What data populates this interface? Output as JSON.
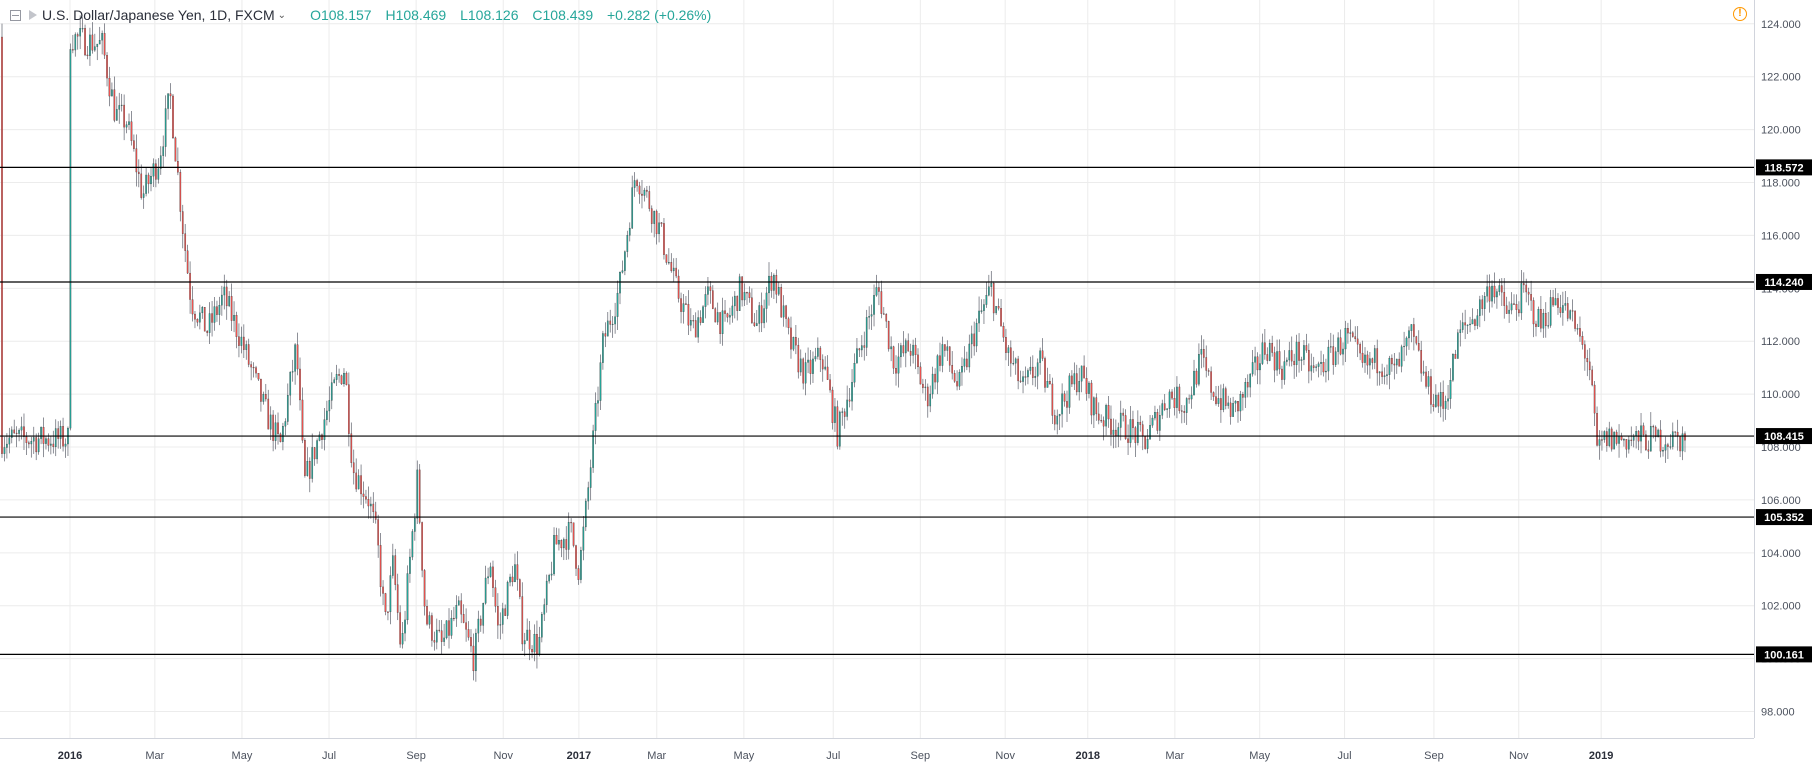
{
  "header": {
    "symbol": "U.S. Dollar/Japanese Yen, 1D, FXCM",
    "open_label": "O",
    "open": "108.157",
    "high_label": "H",
    "high": "108.469",
    "low_label": "L",
    "low": "108.126",
    "close_label": "C",
    "close": "108.439",
    "change": "+0.282 (+0.26%)"
  },
  "chart_data": {
    "type": "candlestick",
    "title": "U.S. Dollar/Japanese Yen, 1D, FXCM",
    "yaxis": {
      "min": 97,
      "max": 124.9,
      "ticks": [
        "98.000",
        "100.000",
        "102.000",
        "104.000",
        "106.000",
        "108.000",
        "110.000",
        "112.000",
        "114.000",
        "116.000",
        "118.000",
        "120.000",
        "122.000",
        "124.000"
      ]
    },
    "xaxis": {
      "labels": [
        {
          "text": "2016",
          "bold": true,
          "pos": 0.0
        },
        {
          "text": "Mar",
          "bold": false,
          "pos": 0.0525
        },
        {
          "text": "May",
          "bold": false,
          "pos": 0.1064
        },
        {
          "text": "Jul",
          "bold": false,
          "pos": 0.1603
        },
        {
          "text": "Sep",
          "bold": false,
          "pos": 0.2142
        },
        {
          "text": "Nov",
          "bold": false,
          "pos": 0.2681
        },
        {
          "text": "2017",
          "bold": true,
          "pos": 0.3149
        },
        {
          "text": "Mar",
          "bold": false,
          "pos": 0.3631
        },
        {
          "text": "May",
          "bold": false,
          "pos": 0.417
        },
        {
          "text": "Jul",
          "bold": false,
          "pos": 0.4723
        },
        {
          "text": "Sep",
          "bold": false,
          "pos": 0.5262
        },
        {
          "text": "Nov",
          "bold": false,
          "pos": 0.5787
        },
        {
          "text": "2018",
          "bold": true,
          "pos": 0.6298
        },
        {
          "text": "Mar",
          "bold": false,
          "pos": 0.6837
        },
        {
          "text": "May",
          "bold": false,
          "pos": 0.7362
        },
        {
          "text": "Jul",
          "bold": false,
          "pos": 0.7887
        },
        {
          "text": "Sep",
          "bold": false,
          "pos": 0.844
        },
        {
          "text": "Nov",
          "bold": false,
          "pos": 0.8965
        },
        {
          "text": "2019",
          "bold": true,
          "pos": 0.9475
        }
      ]
    },
    "levels": [
      118.572,
      114.24,
      108.415,
      105.352,
      100.161
    ],
    "level_labels": [
      "118.572",
      "114.240",
      "108.415",
      "105.352",
      "100.161"
    ],
    "key_points": [
      [
        0,
        123.5
      ],
      [
        0.02,
        123.2
      ],
      [
        0.028,
        120.6
      ],
      [
        0.035,
        120.3
      ],
      [
        0.045,
        117.5
      ],
      [
        0.055,
        118.9
      ],
      [
        0.062,
        121.3
      ],
      [
        0.07,
        116.2
      ],
      [
        0.075,
        113.5
      ],
      [
        0.085,
        112.4
      ],
      [
        0.095,
        113.7
      ],
      [
        0.105,
        112.2
      ],
      [
        0.12,
        109.5
      ],
      [
        0.13,
        108.0
      ],
      [
        0.14,
        111.8
      ],
      [
        0.145,
        106.6
      ],
      [
        0.155,
        108.6
      ],
      [
        0.165,
        110.5
      ],
      [
        0.17,
        111.0
      ],
      [
        0.175,
        107.2
      ],
      [
        0.185,
        106.0
      ],
      [
        0.19,
        104.5
      ],
      [
        0.195,
        101.3
      ],
      [
        0.2,
        103.6
      ],
      [
        0.205,
        100.2
      ],
      [
        0.215,
        106.8
      ],
      [
        0.22,
        101.5
      ],
      [
        0.23,
        100.5
      ],
      [
        0.24,
        101.8
      ],
      [
        0.25,
        100.0
      ],
      [
        0.26,
        103.8
      ],
      [
        0.265,
        101.0
      ],
      [
        0.275,
        103.6
      ],
      [
        0.28,
        101.0
      ],
      [
        0.29,
        100.5
      ],
      [
        0.3,
        104.3
      ],
      [
        0.31,
        104.8
      ],
      [
        0.315,
        103.3
      ],
      [
        0.32,
        106.0
      ],
      [
        0.33,
        112.0
      ],
      [
        0.34,
        114.0
      ],
      [
        0.35,
        118.4
      ],
      [
        0.358,
        117.3
      ],
      [
        0.365,
        116.2
      ],
      [
        0.375,
        114.0
      ],
      [
        0.385,
        112.4
      ],
      [
        0.395,
        113.7
      ],
      [
        0.405,
        112.5
      ],
      [
        0.415,
        114.0
      ],
      [
        0.425,
        112.6
      ],
      [
        0.435,
        114.6
      ],
      [
        0.445,
        112.0
      ],
      [
        0.455,
        110.7
      ],
      [
        0.465,
        111.5
      ],
      [
        0.475,
        108.5
      ],
      [
        0.49,
        112.0
      ],
      [
        0.5,
        114.0
      ],
      [
        0.51,
        111.2
      ],
      [
        0.52,
        111.8
      ],
      [
        0.53,
        109.8
      ],
      [
        0.54,
        111.8
      ],
      [
        0.55,
        110.2
      ],
      [
        0.56,
        112.4
      ],
      [
        0.57,
        114.0
      ],
      [
        0.58,
        111.5
      ],
      [
        0.59,
        110.2
      ],
      [
        0.6,
        111.2
      ],
      [
        0.61,
        109.3
      ],
      [
        0.625,
        110.8
      ],
      [
        0.635,
        109.3
      ],
      [
        0.645,
        108.9
      ],
      [
        0.655,
        108.7
      ],
      [
        0.665,
        108.2
      ],
      [
        0.68,
        110.0
      ],
      [
        0.69,
        109.6
      ],
      [
        0.7,
        111.3
      ],
      [
        0.705,
        110.4
      ],
      [
        0.71,
        109.9
      ],
      [
        0.72,
        109.3
      ],
      [
        0.73,
        110.4
      ],
      [
        0.74,
        111.9
      ],
      [
        0.75,
        111.0
      ],
      [
        0.76,
        111.6
      ],
      [
        0.77,
        110.8
      ],
      [
        0.78,
        111.4
      ],
      [
        0.79,
        112.2
      ],
      [
        0.8,
        111.0
      ],
      [
        0.81,
        111.3
      ],
      [
        0.82,
        110.8
      ],
      [
        0.83,
        112.2
      ],
      [
        0.84,
        110.2
      ],
      [
        0.85,
        109.5
      ],
      [
        0.86,
        112.3
      ],
      [
        0.87,
        113.0
      ],
      [
        0.88,
        114.2
      ],
      [
        0.89,
        113.0
      ],
      [
        0.9,
        113.8
      ],
      [
        0.91,
        112.6
      ],
      [
        0.92,
        113.7
      ],
      [
        0.93,
        112.7
      ],
      [
        0.94,
        111.2
      ],
      [
        0.945,
        107.8
      ],
      [
        0.95,
        108.3
      ],
      [
        0.955,
        108.3
      ]
    ],
    "last_close": 108.439
  }
}
